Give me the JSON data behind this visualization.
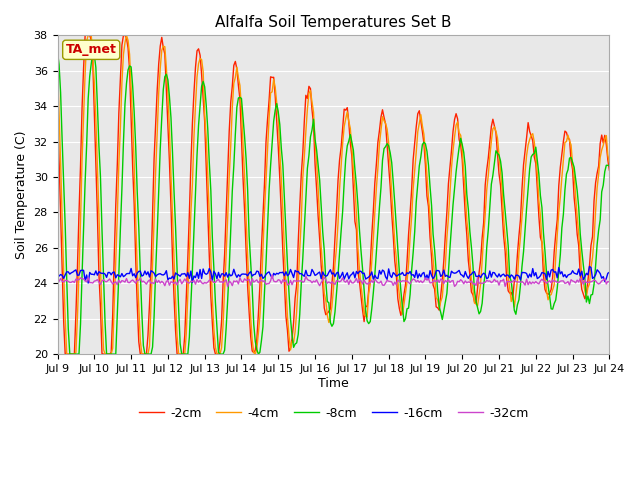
{
  "title": "Alfalfa Soil Temperatures Set B",
  "xlabel": "Time",
  "ylabel": "Soil Temperature (C)",
  "ylim": [
    20,
    38
  ],
  "xlim": [
    0,
    360
  ],
  "annotation": "TA_met",
  "annotation_color": "#cc0000",
  "annotation_bg": "#ffffcc",
  "fig_bg": "#ffffff",
  "plot_bg": "#e8e8e8",
  "series_colors": [
    "#ff2200",
    "#ff9900",
    "#00cc00",
    "#0000ff",
    "#cc44cc"
  ],
  "series_labels": [
    "-2cm",
    "-4cm",
    "-8cm",
    "-16cm",
    "-32cm"
  ],
  "tick_labels": [
    "Jul 9",
    "Jul 10",
    "Jul 11",
    "Jul 12",
    "Jul 13",
    "Jul 14",
    "Jul 15",
    "Jul 16",
    "Jul 17",
    "Jul 18",
    "Jul 19",
    "Jul 20",
    "Jul 21",
    "Jul 22",
    "Jul 23",
    "Jul 24"
  ],
  "tick_positions": [
    0,
    24,
    48,
    72,
    96,
    120,
    144,
    168,
    192,
    216,
    240,
    264,
    288,
    312,
    336,
    360
  ]
}
